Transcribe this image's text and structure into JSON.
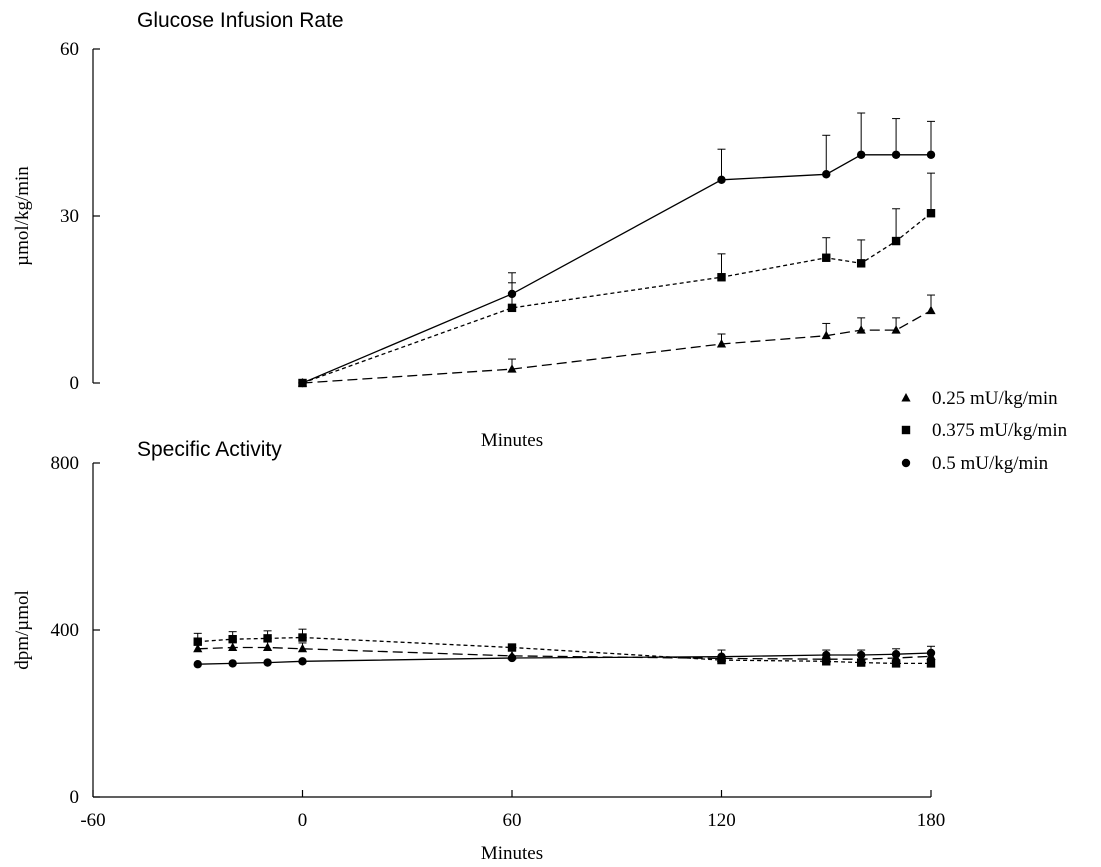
{
  "chart_data": [
    {
      "type": "line",
      "title": "Glucose Infusion Rate",
      "xlabel": "Minutes",
      "ylabel": "µmol/kg/min",
      "xlim": [
        -60,
        180
      ],
      "ylim": [
        0,
        60
      ],
      "yticks": [
        "0",
        "30",
        "60"
      ],
      "grid": false,
      "x_axis_drawn": false,
      "series": [
        {
          "name": "0.25 mU/kg/min",
          "marker": "triangle",
          "linestyle": "long-dash",
          "x": [
            0,
            60,
            120,
            150,
            160,
            170,
            180
          ],
          "y": [
            0,
            2.5,
            7,
            8.5,
            9.5,
            9.5,
            13
          ],
          "err": [
            0,
            1.8,
            1.8,
            2.2,
            2.2,
            2.2,
            2.8
          ]
        },
        {
          "name": "0.375 mU/kg/min",
          "marker": "square",
          "linestyle": "short-dash",
          "x": [
            0,
            60,
            120,
            150,
            160,
            170,
            180
          ],
          "y": [
            0,
            13.5,
            19,
            22.5,
            21.5,
            25.5,
            30.5
          ],
          "err": [
            0,
            4.5,
            4.2,
            3.6,
            4.2,
            5.8,
            7.2
          ]
        },
        {
          "name": "0.5 mU/kg/min",
          "marker": "circle",
          "linestyle": "solid",
          "x": [
            0,
            60,
            120,
            150,
            160,
            170,
            180
          ],
          "y": [
            0,
            16,
            36.5,
            37.5,
            41,
            41,
            41
          ],
          "err": [
            0,
            3.8,
            5.5,
            7,
            7.5,
            6.5,
            6
          ]
        }
      ]
    },
    {
      "type": "line",
      "title": "Specific Activity",
      "xlabel": "Minutes",
      "ylabel": "dpm/µmol",
      "xlim": [
        -60,
        180
      ],
      "ylim": [
        0,
        800
      ],
      "xticks": [
        "-60",
        "0",
        "60",
        "120",
        "180"
      ],
      "yticks": [
        "0",
        "400",
        "800"
      ],
      "grid": false,
      "series": [
        {
          "name": "0.25 mU/kg/min",
          "marker": "triangle",
          "linestyle": "long-dash",
          "x": [
            -30,
            -20,
            -10,
            0,
            60,
            120,
            150,
            160,
            170,
            180
          ],
          "y": [
            355,
            358,
            358,
            355,
            338,
            332,
            330,
            330,
            333,
            337
          ],
          "err": [
            14,
            14,
            14,
            14,
            0,
            20,
            22,
            22,
            22,
            24
          ]
        },
        {
          "name": "0.375 mU/kg/min",
          "marker": "square",
          "linestyle": "short-dash",
          "x": [
            -30,
            -20,
            -10,
            0,
            60,
            120,
            150,
            160,
            170,
            180
          ],
          "y": [
            372,
            378,
            380,
            382,
            358,
            328,
            325,
            322,
            320,
            320
          ],
          "err": [
            20,
            18,
            18,
            20,
            0,
            0,
            0,
            0,
            0,
            0
          ]
        },
        {
          "name": "0.5 mU/kg/min",
          "marker": "circle",
          "linestyle": "solid",
          "x": [
            -30,
            -20,
            -10,
            0,
            60,
            120,
            150,
            160,
            170,
            180
          ],
          "y": [
            318,
            320,
            322,
            325,
            333,
            336,
            340,
            340,
            342,
            345
          ],
          "err": [
            0,
            0,
            0,
            0,
            0,
            0,
            0,
            0,
            0,
            0
          ]
        }
      ]
    }
  ],
  "legend": {
    "placement": "right-center",
    "items": [
      {
        "label": "0.25 mU/kg/min",
        "marker": "triangle"
      },
      {
        "label": "0.375 mU/kg/min",
        "marker": "square"
      },
      {
        "label": "0.5 mU/kg/min",
        "marker": "circle"
      }
    ]
  },
  "colors": {
    "ink": "#000000",
    "background": "#ffffff"
  }
}
